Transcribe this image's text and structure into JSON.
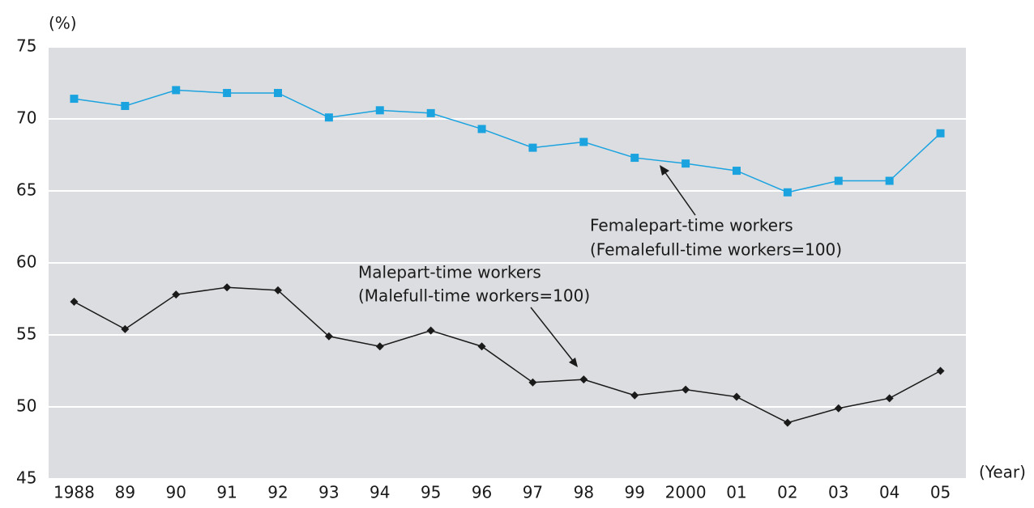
{
  "chart_data": {
    "type": "line",
    "y_label": "(%)",
    "x_label": "(Year)",
    "categories": [
      "1988",
      "89",
      "90",
      "91",
      "92",
      "93",
      "94",
      "95",
      "96",
      "97",
      "98",
      "99",
      "2000",
      "01",
      "02",
      "03",
      "04",
      "05"
    ],
    "series": [
      {
        "name": "Femalepart-time workers",
        "note": "(Femalefull-time workers=100)",
        "color": "#1ba3e0",
        "marker": "square",
        "values": [
          71.4,
          70.9,
          72.0,
          71.8,
          71.8,
          70.1,
          70.6,
          70.4,
          69.3,
          68.0,
          68.4,
          67.3,
          66.9,
          66.4,
          64.9,
          65.7,
          65.7,
          69.0
        ]
      },
      {
        "name": "Malepart-time workers",
        "note": "(Malefull-time workers=100)",
        "color": "#1a1a1a",
        "marker": "diamond",
        "values": [
          57.3,
          55.4,
          57.8,
          58.3,
          58.1,
          54.9,
          54.2,
          55.3,
          54.2,
          51.7,
          51.9,
          50.8,
          51.2,
          50.7,
          48.9,
          49.9,
          50.6,
          52.5
        ]
      }
    ],
    "ylim": [
      45,
      75
    ],
    "yticks": [
      45,
      50,
      55,
      60,
      65,
      70,
      75
    ],
    "grid": true
  }
}
